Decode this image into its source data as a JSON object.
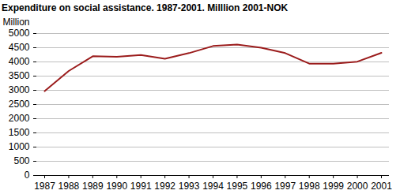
{
  "chart_data": {
    "type": "line",
    "title": "Expenditure on social assistance. 1987-2001. Milllion 2001-NOK",
    "y_label": "Million",
    "x": [
      1987,
      1988,
      1989,
      1990,
      1991,
      1992,
      1993,
      1994,
      1995,
      1996,
      1997,
      1998,
      1999,
      2000,
      2001
    ],
    "series": [
      {
        "name": "Expenditure on social assistance",
        "color": "#9b1c1c",
        "values": [
          2970,
          3680,
          4200,
          4180,
          4240,
          4110,
          4310,
          4560,
          4610,
          4500,
          4310,
          3940,
          3940,
          4010,
          4320
        ]
      }
    ],
    "xlim": [
      1987,
      2001
    ],
    "xticks": [
      1987,
      1988,
      1989,
      1990,
      1991,
      1992,
      1993,
      1994,
      1995,
      1996,
      1997,
      1998,
      1999,
      2000,
      2001
    ],
    "ylim": [
      0,
      5000
    ],
    "yticks": [
      0,
      500,
      1000,
      1500,
      2000,
      2500,
      3000,
      3500,
      4000,
      4500,
      5000
    ],
    "grid": true
  }
}
